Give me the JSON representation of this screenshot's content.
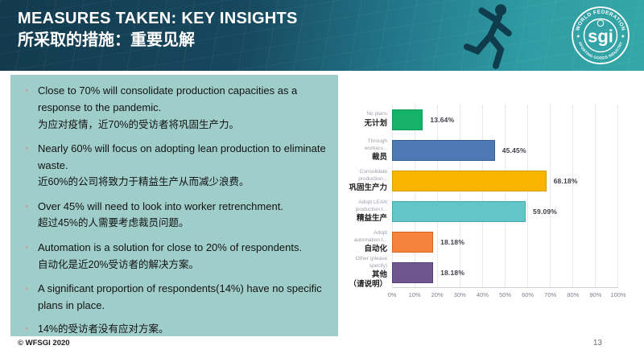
{
  "slide": {
    "header": {
      "title_en": "MEASURES TAKEN: KEY INSIGHTS",
      "title_zh": "所采取的措施：重要见解",
      "bg_dark": "#133a4e",
      "bg_teal": "#35a7a7"
    },
    "logo": {
      "top_text": "WORLD FEDERATION",
      "bottom_text": "SPORTING GOODS INDUSTRY",
      "center_text": "sgi",
      "star": "★"
    },
    "insights": {
      "panel_color": "#9fcdc9",
      "bullet_glyph": "•",
      "bullet_color": "#c7a0a2",
      "bullets": [
        {
          "en": "Close to 70% will consolidate production capacities as a response to the pandemic.",
          "zh": "为应对疫情，近70%的受访者将巩固生产力。"
        },
        {
          "en": "Nearly 60% will focus on adopting lean production to eliminate waste.",
          "zh": "近60%的公司将致力于精益生产从而减少浪费。"
        },
        {
          "en": "Over 45% will need to look into worker retrenchment.",
          "zh": "超过45%的人需要考虑裁员问题。"
        },
        {
          "en": "Automation is a solution for close to 20% of respondents.",
          "zh": "自动化是近20%受访者的解决方案。"
        },
        {
          "en": "A significant proportion of respondents(14%) have no specific plans in place.",
          "zh": ""
        },
        {
          "en": "",
          "zh": "14%的受访者没有应对方案。"
        }
      ]
    },
    "footer": {
      "copyright": "© WFSGI 2020",
      "page_number": "13"
    }
  },
  "chart_data": {
    "type": "bar",
    "orientation": "horizontal",
    "title": "",
    "xlabel": "",
    "ylabel": "",
    "xlim": [
      0,
      100
    ],
    "grid": true,
    "ticks": [
      "0%",
      "10%",
      "20%",
      "30%",
      "40%",
      "50%",
      "60%",
      "70%",
      "80%",
      "90%",
      "100%"
    ],
    "categories": [
      {
        "label_en": "No plans",
        "label_zh": "无计划",
        "value": 13.64,
        "value_label": "13.64%",
        "color": "#17b26a",
        "border": "#0f9c5b"
      },
      {
        "label_en": "Through\nworkers...",
        "label_zh": "裁员",
        "value": 45.45,
        "value_label": "45.45%",
        "color": "#4d77b5",
        "border": "#3a5d94"
      },
      {
        "label_en": "Consolidate\nproduction...",
        "label_zh": "巩固生产力",
        "value": 68.18,
        "value_label": "68.18%",
        "color": "#f7b500",
        "border": "#d99f00"
      },
      {
        "label_en": "Adopt LEAN\nproduction t...",
        "label_zh": "精益生产",
        "value": 59.09,
        "value_label": "59.09%",
        "color": "#63c5c8",
        "border": "#4aa9ac"
      },
      {
        "label_en": "Adopt\nautomation t...",
        "label_zh": "自动化",
        "value": 18.18,
        "value_label": "18.18%",
        "color": "#f5823d",
        "border": "#d66522"
      },
      {
        "label_en": "Other (please\nspecify)",
        "label_zh": "其他\n（请说明）",
        "value": 18.18,
        "value_label": "18.18%",
        "color": "#6e5590",
        "border": "#564173"
      }
    ]
  }
}
